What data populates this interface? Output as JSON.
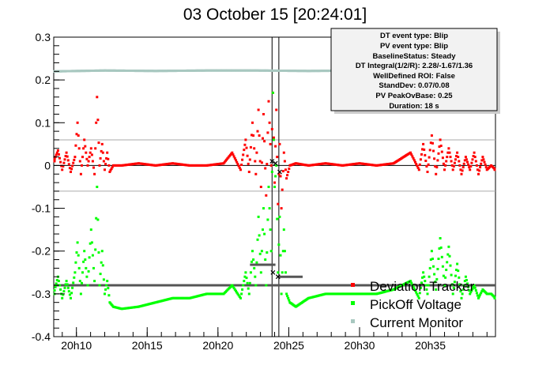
{
  "title": "03 October 15 [20:24:01]",
  "info_box": [
    "DT event type: Blip",
    "PV event type: Blip",
    "BaselineStatus: Steady",
    "DT Integral(1/2/R): 2.28/-1.67/1.36",
    "WellDefined ROI: False",
    "StandDev: 0.07/0.08",
    "PV PeakOvBase: 0.25",
    "Duration: 18 s"
  ],
  "legend": [
    "Deviation Tracker",
    "PickOff Voltage",
    "Current Monitor"
  ],
  "colors": {
    "deviation": "#ff0000",
    "pickoff": "#00ff00",
    "current": "#a8c8c0",
    "guide": "#aaaaaa",
    "baseline": "#555555",
    "marker": "#000000"
  },
  "chart_data": {
    "type": "scatter",
    "xlim": [
      20.14,
      20.66
    ],
    "ylim": [
      -0.4,
      0.3
    ],
    "x_ticks": [
      {
        "v": 20.1667,
        "label": "20h10"
      },
      {
        "v": 20.25,
        "label": "20h15"
      },
      {
        "v": 20.3333,
        "label": "20h20"
      },
      {
        "v": 20.4167,
        "label": "20h25"
      },
      {
        "v": 20.5,
        "label": "20h30"
      },
      {
        "v": 20.5833,
        "label": "20h35"
      }
    ],
    "y_ticks": [
      {
        "v": 0.3,
        "label": "0.3"
      },
      {
        "v": 0.2,
        "label": "0.2"
      },
      {
        "v": 0.1,
        "label": "0.1"
      },
      {
        "v": 0.0,
        "label": "0"
      },
      {
        "v": -0.1,
        "label": "-0.1"
      },
      {
        "v": -0.2,
        "label": "-0.2"
      },
      {
        "v": -0.3,
        "label": "-0.3"
      },
      {
        "v": -0.4,
        "label": "-0.4"
      }
    ],
    "reference_lines": [
      {
        "y": 0.0,
        "style": "solid"
      },
      {
        "y": 0.06,
        "style": "guide"
      },
      {
        "y": -0.06,
        "style": "guide"
      }
    ],
    "event_window": [
      20.397,
      20.405
    ],
    "baselines": [
      {
        "x": [
          20.14,
          20.66
        ],
        "y": -0.28
      },
      {
        "x": [
          20.371,
          20.401
        ],
        "y": -0.232
      },
      {
        "x": [
          20.404,
          20.433
        ],
        "y": -0.26
      }
    ],
    "markers": [
      {
        "x": 20.397,
        "y": 0.01
      },
      {
        "x": 20.401,
        "y": 0.005
      },
      {
        "x": 20.406,
        "y": -0.015
      },
      {
        "x": 20.398,
        "y": -0.25
      },
      {
        "x": 20.404,
        "y": -0.26
      }
    ],
    "series": [
      {
        "name": "Deviation Tracker",
        "x": [
          20.14,
          20.145,
          20.15,
          20.155,
          20.16,
          20.165,
          20.168,
          20.172,
          20.176,
          20.18,
          20.184,
          20.188,
          20.191,
          20.194,
          20.197,
          20.2,
          20.203,
          20.206,
          20.21,
          20.22,
          20.24,
          20.26,
          20.28,
          20.3,
          20.32,
          20.34,
          20.35,
          20.36,
          20.366,
          20.37,
          20.374,
          20.378,
          20.381,
          20.384,
          20.387,
          20.39,
          20.393,
          20.396,
          20.398,
          20.4,
          20.402,
          20.404,
          20.406,
          20.408,
          20.411,
          20.414,
          20.418,
          20.425,
          20.44,
          20.46,
          20.48,
          20.5,
          20.52,
          20.54,
          20.56,
          20.57,
          20.575,
          20.58,
          20.585,
          20.59,
          20.595,
          20.6,
          20.605,
          20.61,
          20.615,
          20.62,
          20.625,
          20.63,
          20.635,
          20.64,
          20.645,
          20.65,
          20.655,
          20.66
        ],
        "y": [
          0.01,
          0.035,
          -0.01,
          0.03,
          -0.015,
          0.02,
          0.1,
          -0.02,
          0.06,
          0.0,
          0.04,
          -0.02,
          0.16,
          0.0,
          0.05,
          -0.01,
          0.03,
          -0.015,
          0.0,
          0.0,
          0.005,
          0.0,
          0.005,
          0.0,
          0.0,
          0.005,
          0.03,
          -0.01,
          0.06,
          -0.015,
          0.1,
          -0.02,
          0.13,
          -0.05,
          0.12,
          -0.07,
          0.15,
          0.0,
          0.17,
          -0.04,
          0.13,
          -0.09,
          0.05,
          -0.1,
          0.03,
          -0.03,
          0.0,
          0.005,
          0.0,
          0.005,
          0.0,
          0.005,
          0.0,
          0.005,
          0.03,
          -0.01,
          0.05,
          -0.015,
          0.07,
          -0.02,
          0.06,
          -0.01,
          0.04,
          -0.01,
          0.03,
          -0.02,
          0.02,
          -0.01,
          0.03,
          -0.02,
          0.02,
          -0.01,
          0.0,
          -0.01
        ]
      },
      {
        "name": "PickOff Voltage",
        "x": [
          20.14,
          20.145,
          20.15,
          20.155,
          20.16,
          20.165,
          20.168,
          20.172,
          20.176,
          20.18,
          20.184,
          20.188,
          20.191,
          20.194,
          20.197,
          20.2,
          20.203,
          20.206,
          20.21,
          20.22,
          20.24,
          20.26,
          20.28,
          20.3,
          20.32,
          20.34,
          20.35,
          20.36,
          20.366,
          20.37,
          20.374,
          20.378,
          20.381,
          20.384,
          20.387,
          20.39,
          20.393,
          20.396,
          20.398,
          20.4,
          20.402,
          20.404,
          20.406,
          20.408,
          20.411,
          20.414,
          20.418,
          20.425,
          20.44,
          20.46,
          20.48,
          20.5,
          20.52,
          20.54,
          20.56,
          20.57,
          20.575,
          20.58,
          20.585,
          20.59,
          20.595,
          20.6,
          20.605,
          20.61,
          20.615,
          20.62,
          20.625,
          20.63,
          20.635,
          20.64,
          20.645,
          20.65,
          20.655,
          20.66
        ],
        "y": [
          -0.3,
          -0.26,
          -0.31,
          -0.27,
          -0.31,
          -0.25,
          -0.18,
          -0.3,
          -0.2,
          -0.28,
          -0.15,
          -0.27,
          -0.05,
          -0.28,
          -0.2,
          -0.3,
          -0.27,
          -0.32,
          -0.33,
          -0.335,
          -0.33,
          -0.32,
          -0.31,
          -0.31,
          -0.3,
          -0.3,
          -0.28,
          -0.31,
          -0.25,
          -0.3,
          -0.2,
          -0.28,
          -0.12,
          -0.25,
          -0.1,
          -0.28,
          -0.05,
          -0.2,
          0.17,
          -0.05,
          0.0,
          -0.25,
          -0.12,
          -0.3,
          -0.15,
          -0.3,
          -0.32,
          -0.33,
          -0.31,
          -0.3,
          -0.3,
          -0.3,
          -0.3,
          -0.29,
          -0.27,
          -0.31,
          -0.25,
          -0.3,
          -0.2,
          -0.29,
          -0.17,
          -0.28,
          -0.19,
          -0.3,
          -0.23,
          -0.31,
          -0.26,
          -0.3,
          -0.28,
          -0.31,
          -0.29,
          -0.3,
          -0.3,
          -0.31
        ]
      },
      {
        "name": "Current Monitor",
        "x": [
          20.14,
          20.2,
          20.26,
          20.32,
          20.38,
          20.44,
          20.5,
          20.56,
          20.62,
          20.66
        ],
        "y": [
          0.22,
          0.222,
          0.221,
          0.222,
          0.222,
          0.221,
          0.222,
          0.222,
          0.222,
          0.222
        ]
      }
    ]
  }
}
